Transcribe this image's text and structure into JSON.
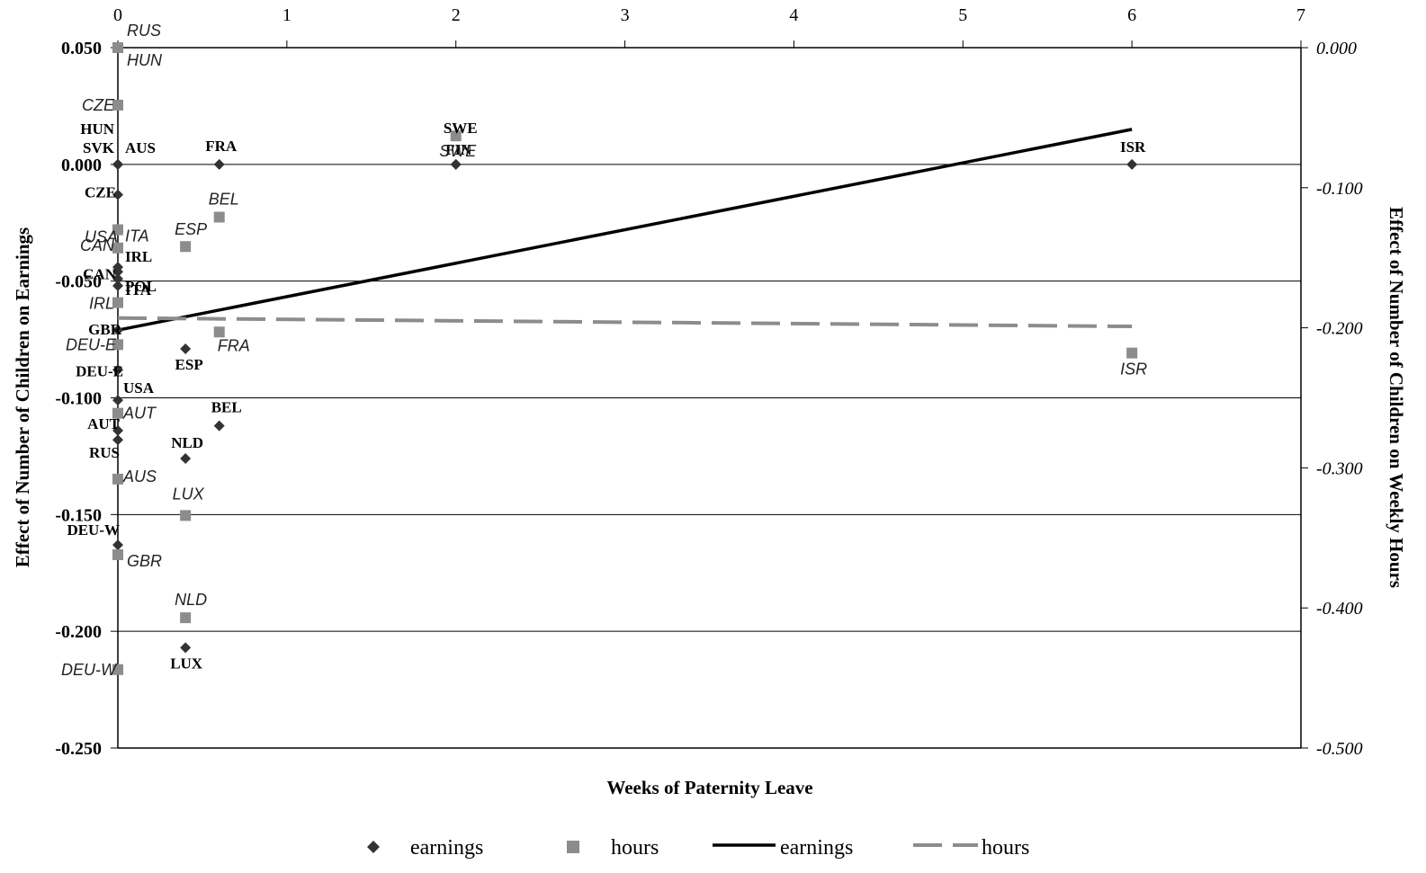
{
  "chart_data": {
    "type": "scatter",
    "title": "",
    "xlabel": "Weeks of Paternity Leave",
    "ylabel_left": "Effect of Number of Children on Earnings",
    "ylabel_right": "Effect of Number of Children on Weekly Hours",
    "xlim": [
      0,
      7
    ],
    "ylim_left": [
      -0.25,
      0.05
    ],
    "ylim_right": [
      -0.5,
      0.0
    ],
    "x_ticks": [
      "0",
      "1",
      "2",
      "3",
      "4",
      "5",
      "6",
      "7"
    ],
    "y_left_ticks": [
      "0.050",
      "0.000",
      "-0.050",
      "-0.100",
      "-0.150",
      "-0.200",
      "-0.250"
    ],
    "y_right_ticks": [
      "0.000",
      "-0.100",
      "-0.200",
      "-0.300",
      "-0.400",
      "-0.500"
    ],
    "grid": "horizontal",
    "legend": {
      "position": "bottom",
      "entries": [
        "earnings",
        "hours",
        "earnings",
        "hours"
      ]
    },
    "series": [
      {
        "name": "earnings",
        "marker": "diamond",
        "axis": "left",
        "color": "#333333",
        "points": [
          {
            "label": "HUN",
            "x": 0,
            "y": 0.0
          },
          {
            "label": "SVK",
            "x": 0,
            "y": 0.0
          },
          {
            "label": "AUS",
            "x": 0,
            "y": 0.0
          },
          {
            "label": "FRA",
            "x": 0.6,
            "y": 0.0
          },
          {
            "label": "SWE",
            "x": 2,
            "y": 0.0
          },
          {
            "label": "FIN",
            "x": 2,
            "y": 0.0
          },
          {
            "label": "ISR",
            "x": 6,
            "y": 0.0
          },
          {
            "label": "CZE",
            "x": 0,
            "y": -0.013
          },
          {
            "label": "IRL",
            "x": 0,
            "y": -0.044
          },
          {
            "label": "CAN",
            "x": 0,
            "y": -0.046
          },
          {
            "label": "POL",
            "x": 0,
            "y": -0.049
          },
          {
            "label": "ITA",
            "x": 0,
            "y": -0.052
          },
          {
            "label": "GBR",
            "x": 0,
            "y": -0.071
          },
          {
            "label": "ESP",
            "x": 0.4,
            "y": -0.079
          },
          {
            "label": "DEU-E",
            "x": 0,
            "y": -0.088
          },
          {
            "label": "USA",
            "x": 0,
            "y": -0.101
          },
          {
            "label": "BEL",
            "x": 0.6,
            "y": -0.112
          },
          {
            "label": "AUT",
            "x": 0,
            "y": -0.114
          },
          {
            "label": "RUS",
            "x": 0,
            "y": -0.118
          },
          {
            "label": "NLD",
            "x": 0.4,
            "y": -0.126
          },
          {
            "label": "DEU-W",
            "x": 0,
            "y": -0.163
          },
          {
            "label": "LUX",
            "x": 0.4,
            "y": -0.207
          }
        ]
      },
      {
        "name": "hours",
        "marker": "square",
        "axis": "right",
        "color": "#8c8c8c",
        "points": [
          {
            "label": "RUS",
            "x": 0,
            "y": 0.0
          },
          {
            "label": "HUN",
            "x": 0,
            "y": 0.0
          },
          {
            "label": "CZE",
            "x": 0,
            "y": -0.041
          },
          {
            "label": "SWE",
            "x": 2,
            "y": -0.063
          },
          {
            "label": "USA",
            "x": 0,
            "y": -0.13
          },
          {
            "label": "ITA",
            "x": 0,
            "y": -0.13
          },
          {
            "label": "BEL",
            "x": 0.6,
            "y": -0.121
          },
          {
            "label": "CAN",
            "x": 0,
            "y": -0.143
          },
          {
            "label": "ESP",
            "x": 0.4,
            "y": -0.142
          },
          {
            "label": "IRL",
            "x": 0,
            "y": -0.182
          },
          {
            "label": "FRA",
            "x": 0.6,
            "y": -0.203
          },
          {
            "label": "DEU-E",
            "x": 0,
            "y": -0.212
          },
          {
            "label": "ISR",
            "x": 6,
            "y": -0.218
          },
          {
            "label": "AUT",
            "x": 0,
            "y": -0.261
          },
          {
            "label": "AUS",
            "x": 0,
            "y": -0.308
          },
          {
            "label": "LUX",
            "x": 0.4,
            "y": -0.334
          },
          {
            "label": "GBR",
            "x": 0,
            "y": -0.362
          },
          {
            "label": "NLD",
            "x": 0.4,
            "y": -0.407
          },
          {
            "label": "DEU-W",
            "x": 0,
            "y": -0.444
          }
        ]
      }
    ],
    "trendlines": [
      {
        "name": "earnings",
        "axis": "left",
        "style": "solid",
        "color": "#000000",
        "x": [
          0,
          6
        ],
        "y": [
          -0.071,
          0.015
        ]
      },
      {
        "name": "hours",
        "axis": "right",
        "style": "dashed",
        "color": "#8c8c8c",
        "x": [
          0,
          6
        ],
        "y": [
          -0.193,
          -0.199
        ]
      }
    ]
  }
}
